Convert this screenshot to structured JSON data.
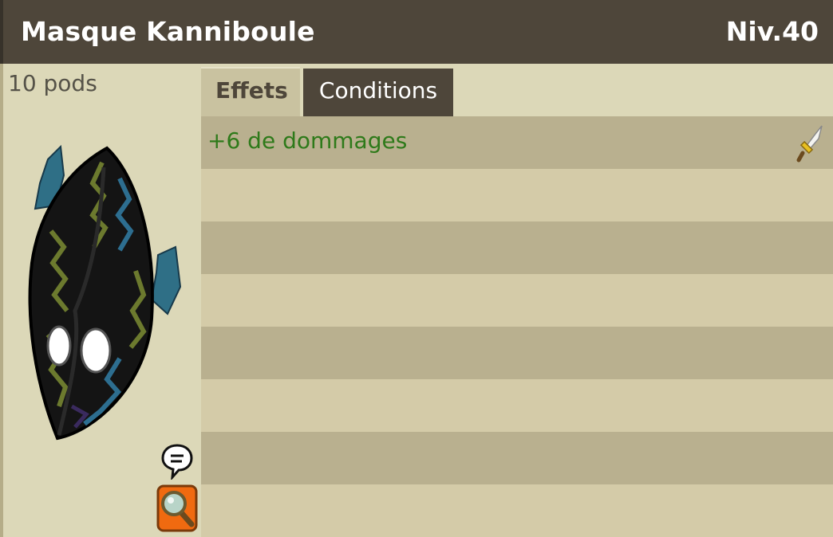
{
  "header": {
    "title": "Masque Kanniboule",
    "level": "Niv.40"
  },
  "item": {
    "weight": "10 pods",
    "image_icon": "mask-icon"
  },
  "tabs": [
    {
      "label": "Effets",
      "active": true
    },
    {
      "label": "Conditions",
      "active": false
    }
  ],
  "effects": [
    {
      "text": "+6 de dommages",
      "color": "#2e7a1a",
      "icon": "sword-icon"
    }
  ],
  "actions": {
    "chat_icon": "chat-bubble-icon",
    "search_icon": "magnifier-icon"
  },
  "colors": {
    "header_bg": "#4e463a",
    "panel_bg": "#dcd8b8",
    "row_dark": "#b9b08f",
    "row_light": "#d4cba8",
    "effect_green": "#2e7a1a",
    "search_button_orange": "#f06a10"
  }
}
